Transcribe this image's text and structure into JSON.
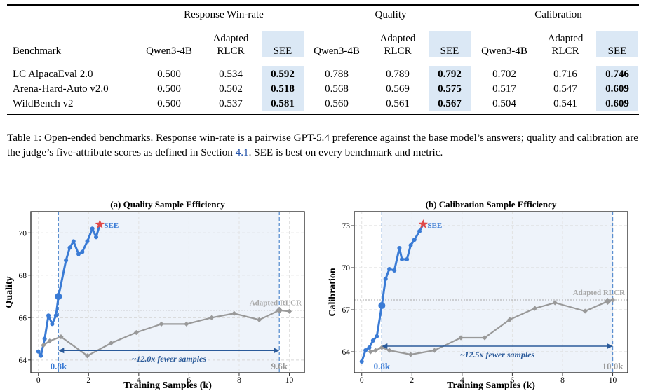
{
  "table": {
    "groups": [
      "Response Win-rate",
      "Quality",
      "Calibration"
    ],
    "col_benchmark": "Benchmark",
    "cols": [
      {
        "top": "",
        "bottom": "Qwen3-4B"
      },
      {
        "top": "Adapted",
        "bottom": "RLCR"
      },
      {
        "top": "",
        "bottom": "SEE"
      }
    ],
    "rows": [
      {
        "name": "LC AlpacaEval 2.0",
        "values": [
          "0.500",
          "0.534",
          "0.592",
          "0.788",
          "0.789",
          "0.792",
          "0.702",
          "0.716",
          "0.746"
        ]
      },
      {
        "name": "Arena-Hard-Auto v2.0",
        "values": [
          "0.500",
          "0.502",
          "0.518",
          "0.568",
          "0.569",
          "0.575",
          "0.517",
          "0.547",
          "0.609"
        ]
      },
      {
        "name": "WildBench v2",
        "values": [
          "0.500",
          "0.537",
          "0.581",
          "0.560",
          "0.561",
          "0.567",
          "0.504",
          "0.541",
          "0.609"
        ]
      }
    ],
    "highlight_color": "#dbe8f5"
  },
  "caption": {
    "part1": "Table 1: Open-ended benchmarks. Response win-rate is a pairwise GPT-5.4 preference against the base model’s answers; quality and calibration are the judge’s five-attribute scores as defined in Section ",
    "ref": "4.1",
    "part2": ". SEE is best on every benchmark and metric."
  },
  "chart_data": [
    {
      "type": "line",
      "title": "(a) Quality Sample Efficiency",
      "xlabel": "Training Samples (k)",
      "ylabel": "Quality",
      "xlim": [
        -0.3,
        10.6
      ],
      "ylim": [
        63.4,
        71.0
      ],
      "xticks": [
        0,
        2,
        4,
        6,
        8,
        10
      ],
      "yticks": [
        64,
        66,
        68,
        70
      ],
      "series": [
        {
          "name": "SEE",
          "color": "#3a7bd5",
          "x": [
            0,
            0.1,
            0.25,
            0.4,
            0.55,
            0.7,
            0.8,
            1.1,
            1.25,
            1.4,
            1.6,
            1.75,
            1.95,
            2.15,
            2.3,
            2.45
          ],
          "y": [
            64.4,
            64.2,
            65.0,
            66.1,
            65.7,
            66.1,
            67.0,
            68.7,
            69.3,
            69.6,
            69.0,
            69.1,
            69.6,
            70.2,
            69.8,
            70.4
          ]
        },
        {
          "name": "Adapted RLCR",
          "color": "#999999",
          "x": [
            0.2,
            0.45,
            0.9,
            1.95,
            2.9,
            3.9,
            4.9,
            5.9,
            6.9,
            7.8,
            8.8,
            9.6,
            10.0
          ],
          "y": [
            64.7,
            64.9,
            65.1,
            64.2,
            64.8,
            65.3,
            65.7,
            65.7,
            66.0,
            66.2,
            65.9,
            66.35,
            66.3
          ]
        }
      ],
      "labels": {
        "see": "SEE",
        "rlcr": "Adapted RLCR"
      },
      "ref_hline": 66.35,
      "vlines": [
        0.8,
        9.6
      ],
      "vline_labels": [
        "0.8k",
        "9.6k"
      ],
      "annotation": "~12.0x fewer samples",
      "arrow_y": 64.45
    },
    {
      "type": "line",
      "title": "(b) Calibration Sample Efficiency",
      "xlabel": "Training Samples (k)",
      "ylabel": "Calibration",
      "xlim": [
        -0.3,
        10.6
      ],
      "ylim": [
        62.5,
        74.0
      ],
      "xticks": [
        0,
        2,
        4,
        6,
        8,
        10
      ],
      "yticks": [
        64,
        67,
        70,
        73
      ],
      "series": [
        {
          "name": "SEE",
          "color": "#3a7bd5",
          "x": [
            0,
            0.15,
            0.3,
            0.45,
            0.6,
            0.8,
            0.95,
            1.1,
            1.3,
            1.5,
            1.6,
            1.8,
            1.95,
            2.1,
            2.3,
            2.45
          ],
          "y": [
            63.3,
            64.1,
            64.3,
            64.8,
            65.1,
            67.3,
            69.2,
            69.9,
            69.8,
            71.4,
            70.6,
            70.6,
            71.6,
            72.0,
            72.6,
            73.1
          ]
        },
        {
          "name": "Adapted RLCR",
          "color": "#999999",
          "x": [
            0.35,
            0.55,
            0.8,
            1.1,
            1.95,
            2.9,
            3.95,
            4.9,
            5.9,
            6.9,
            7.7,
            8.9,
            9.8,
            10.0
          ],
          "y": [
            64.0,
            64.1,
            64.3,
            64.1,
            63.8,
            64.1,
            65.0,
            65.0,
            66.3,
            67.1,
            67.5,
            66.9,
            67.6,
            67.7
          ]
        }
      ],
      "labels": {
        "see": "SEE",
        "rlcr": "Adapted RLCR"
      },
      "ref_hline": 67.7,
      "vlines": [
        0.8,
        10.0
      ],
      "vline_labels": [
        "0.8k",
        "10.0k"
      ],
      "annotation": "~12.5x fewer samples",
      "arrow_y": 64.4
    }
  ]
}
